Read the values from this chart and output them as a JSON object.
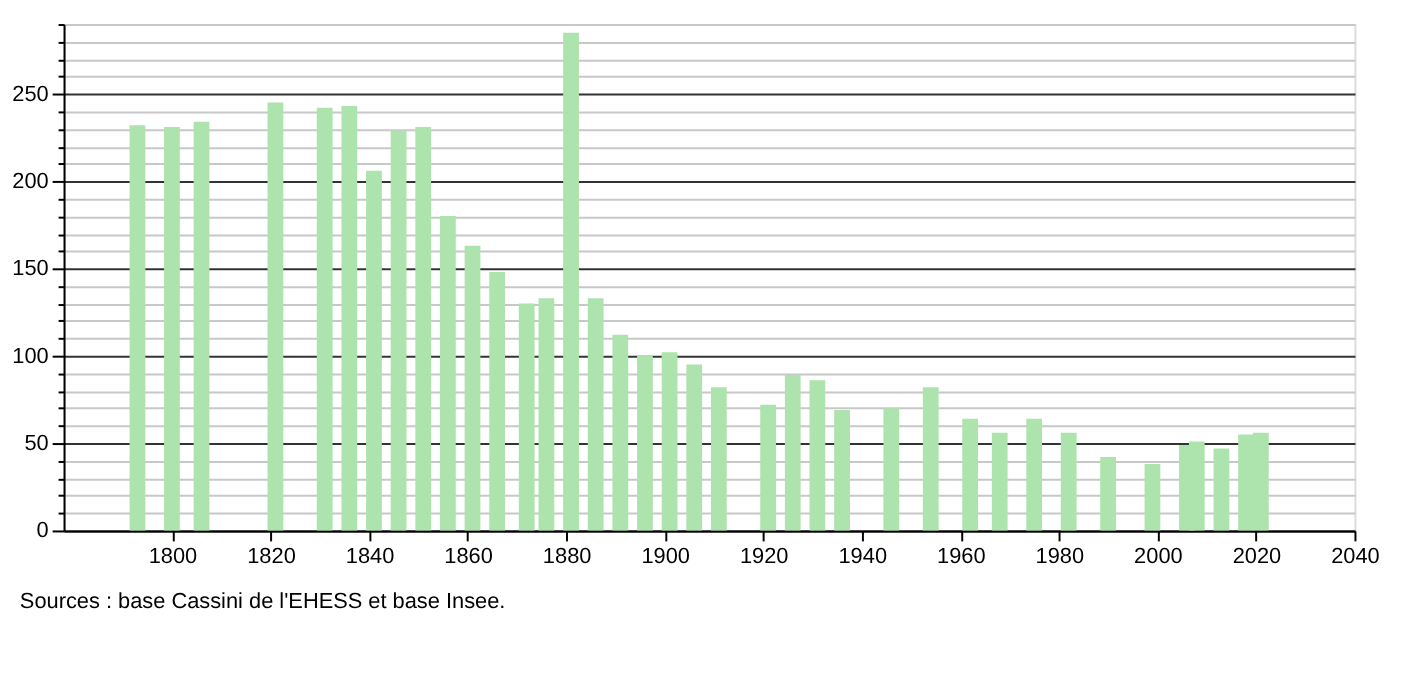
{
  "chart_data": {
    "type": "bar",
    "color": "#ade3ad",
    "x": [
      1793,
      1800,
      1806,
      1821,
      1831,
      1836,
      1841,
      1846,
      1851,
      1856,
      1861,
      1866,
      1872,
      1876,
      1881,
      1886,
      1891,
      1896,
      1901,
      1906,
      1911,
      1921,
      1926,
      1931,
      1936,
      1946,
      1954,
      1962,
      1968,
      1975,
      1982,
      1990,
      1999,
      2006,
      2008,
      2013,
      2018,
      2021
    ],
    "values": [
      232,
      231,
      234,
      245,
      242,
      243,
      206,
      229,
      231,
      180,
      163,
      148,
      130,
      133,
      285,
      133,
      112,
      100,
      102,
      95,
      82,
      72,
      89,
      86,
      69,
      70,
      82,
      64,
      56,
      64,
      56,
      42,
      38,
      49,
      51,
      47,
      55,
      56
    ],
    "xlim": [
      1778,
      2040
    ],
    "xticks": [
      1800,
      1820,
      1840,
      1860,
      1880,
      1900,
      1920,
      1940,
      1960,
      1980,
      2000,
      2020,
      2040
    ],
    "ylim": [
      0,
      290
    ],
    "yticks": [
      0,
      {
        "value": 10,
        "label": null
      },
      {
        "value": 20,
        "label": null
      },
      {
        "value": 30,
        "label": null
      },
      {
        "value": 40,
        "label": null
      },
      50,
      {
        "value": 60,
        "label": null
      },
      {
        "value": 70,
        "label": null
      },
      {
        "value": 80,
        "label": null
      },
      {
        "value": 90,
        "label": null
      },
      100,
      {
        "value": 110,
        "label": null
      },
      {
        "value": 120,
        "label": null
      },
      {
        "value": 130,
        "label": null
      },
      {
        "value": 140,
        "label": null
      },
      150,
      {
        "value": 160,
        "label": null
      },
      {
        "value": 170,
        "label": null
      },
      {
        "value": 180,
        "label": null
      },
      {
        "value": 190,
        "label": null
      },
      200,
      {
        "value": 210,
        "label": null
      },
      {
        "value": 220,
        "label": null
      },
      {
        "value": 230,
        "label": null
      },
      {
        "value": 240,
        "label": null
      },
      250,
      {
        "value": 260,
        "label": null
      },
      {
        "value": 270,
        "label": null
      },
      {
        "value": 280,
        "label": null
      },
      {
        "value": 290,
        "label": null
      }
    ],
    "grid": "y",
    "annotations": [
      "Sources : base Cassini de l'EHESS et base Insee."
    ]
  }
}
